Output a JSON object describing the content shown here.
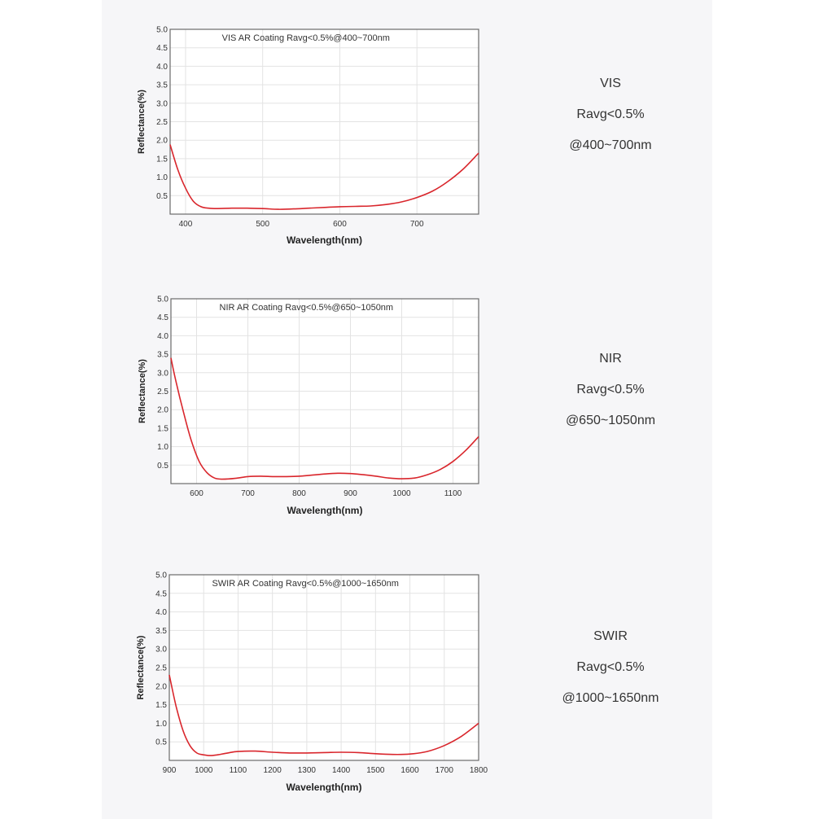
{
  "chart_data": [
    {
      "type": "line",
      "title": "VIS AR Coating Ravg<0.5%@400~700nm",
      "xlabel": "Wavelength(nm)",
      "ylabel": "Reflectance(%)",
      "xlim": [
        380,
        780
      ],
      "ylim": [
        0,
        5.0
      ],
      "xticks": [
        400,
        500,
        600,
        700
      ],
      "yticks": [
        0.5,
        1.0,
        1.5,
        2.0,
        2.5,
        3.0,
        3.5,
        4.0,
        4.5,
        5.0
      ],
      "grid": true,
      "series": [
        {
          "color": "#d9262c",
          "x": [
            380,
            390,
            400,
            410,
            420,
            430,
            440,
            460,
            480,
            500,
            520,
            540,
            560,
            580,
            600,
            620,
            640,
            660,
            680,
            700,
            720,
            740,
            760,
            780
          ],
          "y": [
            1.88,
            1.2,
            0.7,
            0.35,
            0.2,
            0.16,
            0.15,
            0.16,
            0.16,
            0.15,
            0.13,
            0.14,
            0.16,
            0.18,
            0.2,
            0.21,
            0.22,
            0.26,
            0.33,
            0.45,
            0.62,
            0.88,
            1.22,
            1.65
          ]
        }
      ]
    },
    {
      "type": "line",
      "title": "NIR AR Coating Ravg<0.5%@650~1050nm",
      "xlabel": "Wavelength(nm)",
      "ylabel": "Reflectance(%)",
      "xlim": [
        550,
        1150
      ],
      "ylim": [
        0,
        5.0
      ],
      "xticks": [
        600,
        700,
        800,
        900,
        1000,
        1100
      ],
      "yticks": [
        0.5,
        1.0,
        1.5,
        2.0,
        2.5,
        3.0,
        3.5,
        4.0,
        4.5,
        5.0
      ],
      "grid": true,
      "series": [
        {
          "color": "#d9262c",
          "x": [
            550,
            560,
            575,
            590,
            605,
            620,
            635,
            650,
            675,
            700,
            725,
            750,
            775,
            800,
            825,
            850,
            875,
            900,
            925,
            950,
            975,
            1000,
            1025,
            1050,
            1075,
            1100,
            1125,
            1150
          ],
          "y": [
            3.4,
            2.75,
            1.9,
            1.15,
            0.6,
            0.3,
            0.15,
            0.12,
            0.14,
            0.19,
            0.2,
            0.19,
            0.19,
            0.2,
            0.23,
            0.26,
            0.28,
            0.27,
            0.24,
            0.2,
            0.15,
            0.13,
            0.15,
            0.24,
            0.38,
            0.6,
            0.9,
            1.27
          ]
        }
      ]
    },
    {
      "type": "line",
      "title": "SWIR AR Coating Ravg<0.5%@1000~1650nm",
      "xlabel": "Wavelength(nm)",
      "ylabel": "Reflectance(%)",
      "xlim": [
        900,
        1800
      ],
      "ylim": [
        0,
        5.0
      ],
      "xticks": [
        900,
        1000,
        1100,
        1200,
        1300,
        1400,
        1500,
        1600,
        1700,
        1800
      ],
      "yticks": [
        0.5,
        1.0,
        1.5,
        2.0,
        2.5,
        3.0,
        3.5,
        4.0,
        4.5,
        5.0
      ],
      "grid": true,
      "series": [
        {
          "color": "#d9262c",
          "x": [
            900,
            920,
            940,
            960,
            980,
            1000,
            1020,
            1040,
            1070,
            1100,
            1150,
            1200,
            1250,
            1300,
            1350,
            1400,
            1450,
            1500,
            1550,
            1600,
            1650,
            1700,
            1750,
            1800
          ],
          "y": [
            2.3,
            1.45,
            0.8,
            0.4,
            0.2,
            0.15,
            0.13,
            0.15,
            0.2,
            0.24,
            0.25,
            0.22,
            0.2,
            0.2,
            0.21,
            0.22,
            0.21,
            0.18,
            0.16,
            0.17,
            0.24,
            0.4,
            0.65,
            1.0
          ]
        }
      ]
    }
  ],
  "captions": [
    {
      "name": "VIS",
      "spec": "Ravg<0.5%",
      "range": "@400~700nm"
    },
    {
      "name": "NIR",
      "spec": "Ravg<0.5%",
      "range": "@650~1050nm"
    },
    {
      "name": "SWIR",
      "spec": "Ravg<0.5%",
      "range": "@1000~1650nm"
    }
  ]
}
